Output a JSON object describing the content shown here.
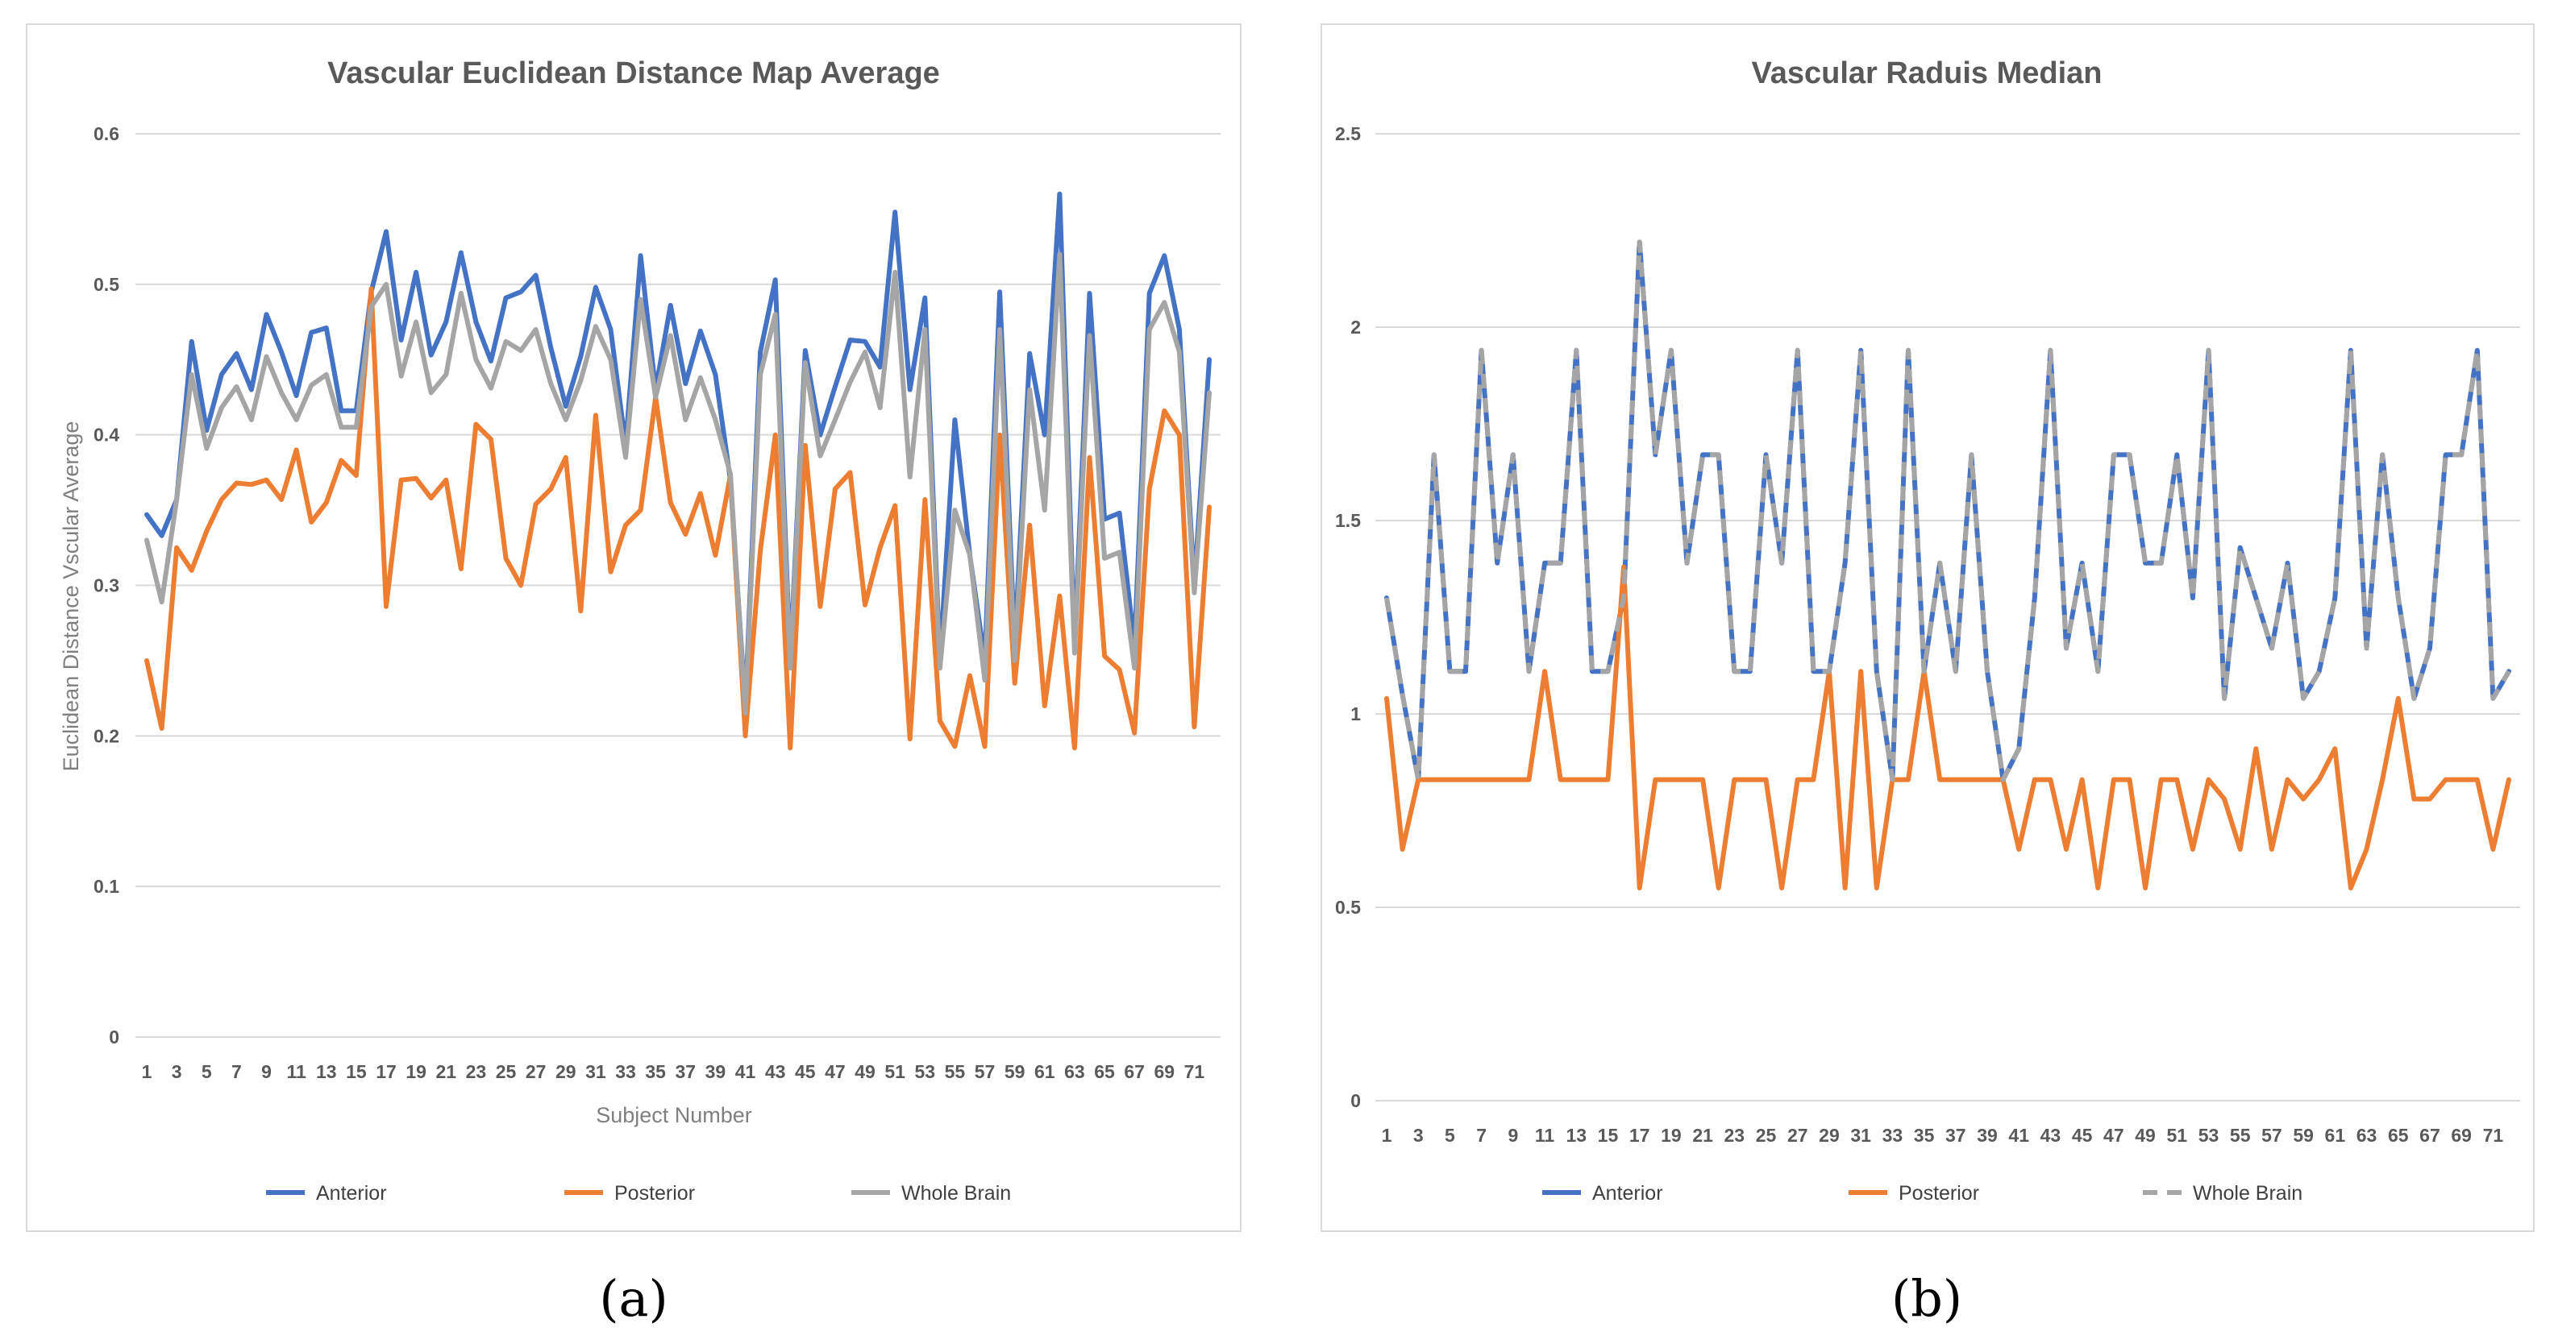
{
  "chart_data": [
    {
      "type": "line",
      "panel_label": "(a)",
      "title": "Vascular Euclidean Distance Map Average",
      "xlabel": "Subject Number",
      "ylabel": "Euclidean Distance  Vscular Average",
      "ylim": [
        0,
        0.6
      ],
      "yticks": [
        "0",
        "0.1",
        "0.2",
        "0.3",
        "0.4",
        "0.5",
        "0.6"
      ],
      "ytick_values": [
        0,
        0.1,
        0.2,
        0.3,
        0.4,
        0.5,
        0.6
      ],
      "xticks": [
        "1",
        "3",
        "5",
        "7",
        "9",
        "11",
        "13",
        "15",
        "17",
        "19",
        "21",
        "23",
        "25",
        "27",
        "29",
        "31",
        "33",
        "35",
        "37",
        "39",
        "41",
        "43",
        "45",
        "47",
        "49",
        "51",
        "53",
        "55",
        "57",
        "59",
        "61",
        "63",
        "65",
        "67",
        "69",
        "71"
      ],
      "x": [
        1,
        2,
        3,
        4,
        5,
        6,
        7,
        8,
        9,
        10,
        11,
        12,
        13,
        14,
        15,
        16,
        17,
        18,
        19,
        20,
        21,
        22,
        23,
        24,
        25,
        26,
        27,
        28,
        29,
        30,
        31,
        32,
        33,
        34,
        35,
        36,
        37,
        38,
        39,
        40,
        41,
        42,
        43,
        44,
        45,
        46,
        47,
        48,
        49,
        50,
        51,
        52,
        53,
        54,
        55,
        56,
        57,
        58,
        59,
        60,
        61,
        62,
        63,
        64,
        65,
        66,
        67,
        68,
        69,
        70,
        71,
        72
      ],
      "legend_position": "bottom",
      "series": [
        {
          "name": "Anterior",
          "color": "#4472c4",
          "dash": false,
          "values": [
            0.347,
            0.333,
            0.357,
            0.462,
            0.403,
            0.44,
            0.454,
            0.43,
            0.48,
            0.455,
            0.426,
            0.468,
            0.471,
            0.416,
            0.416,
            0.495,
            0.535,
            0.463,
            0.508,
            0.453,
            0.475,
            0.521,
            0.475,
            0.449,
            0.491,
            0.495,
            0.506,
            0.458,
            0.419,
            0.452,
            0.498,
            0.47,
            0.393,
            0.519,
            0.43,
            0.486,
            0.434,
            0.469,
            0.44,
            0.37,
            0.22,
            0.455,
            0.503,
            0.25,
            0.456,
            0.4,
            0.432,
            0.463,
            0.462,
            0.445,
            0.548,
            0.43,
            0.491,
            0.25,
            0.41,
            0.32,
            0.25,
            0.495,
            0.26,
            0.454,
            0.4,
            0.56,
            0.26,
            0.494,
            0.344,
            0.348,
            0.26,
            0.494,
            0.519,
            0.47,
            0.3,
            0.45
          ]
        },
        {
          "name": "Posterior",
          "color": "#ed7d31",
          "dash": false,
          "values": [
            0.25,
            0.205,
            0.325,
            0.31,
            0.336,
            0.357,
            0.368,
            0.367,
            0.37,
            0.357,
            0.39,
            0.342,
            0.355,
            0.383,
            0.373,
            0.497,
            0.286,
            0.37,
            0.371,
            0.358,
            0.37,
            0.311,
            0.407,
            0.397,
            0.318,
            0.3,
            0.354,
            0.364,
            0.385,
            0.283,
            0.413,
            0.309,
            0.34,
            0.35,
            0.425,
            0.355,
            0.334,
            0.361,
            0.32,
            0.373,
            0.2,
            0.323,
            0.4,
            0.192,
            0.393,
            0.286,
            0.364,
            0.375,
            0.287,
            0.325,
            0.353,
            0.198,
            0.357,
            0.21,
            0.193,
            0.24,
            0.193,
            0.4,
            0.235,
            0.34,
            0.22,
            0.293,
            0.192,
            0.385,
            0.253,
            0.244,
            0.202,
            0.364,
            0.416,
            0.4,
            0.206,
            0.352
          ]
        },
        {
          "name": "Whole Brain",
          "color": "#a5a5a5",
          "dash": false,
          "values": [
            0.33,
            0.289,
            0.357,
            0.44,
            0.391,
            0.418,
            0.432,
            0.41,
            0.452,
            0.428,
            0.41,
            0.433,
            0.44,
            0.405,
            0.405,
            0.485,
            0.5,
            0.439,
            0.475,
            0.428,
            0.44,
            0.494,
            0.45,
            0.431,
            0.462,
            0.456,
            0.47,
            0.434,
            0.41,
            0.436,
            0.472,
            0.45,
            0.385,
            0.49,
            0.425,
            0.466,
            0.41,
            0.438,
            0.41,
            0.374,
            0.215,
            0.44,
            0.48,
            0.245,
            0.448,
            0.386,
            0.41,
            0.435,
            0.455,
            0.418,
            0.508,
            0.372,
            0.47,
            0.245,
            0.35,
            0.32,
            0.237,
            0.47,
            0.25,
            0.43,
            0.35,
            0.52,
            0.255,
            0.466,
            0.318,
            0.322,
            0.245,
            0.47,
            0.488,
            0.455,
            0.295,
            0.428
          ]
        }
      ]
    },
    {
      "type": "line",
      "panel_label": "(b)",
      "title": "Vascular Raduis Median",
      "xlabel": "",
      "ylabel": "",
      "ylim": [
        0,
        2.5
      ],
      "yticks": [
        "0",
        "0.5",
        "1",
        "1.5",
        "2",
        "2.5"
      ],
      "ytick_values": [
        0,
        0.5,
        1,
        1.5,
        2,
        2.5
      ],
      "xticks": [
        "1",
        "3",
        "5",
        "7",
        "9",
        "11",
        "13",
        "15",
        "17",
        "19",
        "21",
        "23",
        "25",
        "27",
        "29",
        "31",
        "33",
        "35",
        "37",
        "39",
        "41",
        "43",
        "45",
        "47",
        "49",
        "51",
        "53",
        "55",
        "57",
        "59",
        "61",
        "63",
        "65",
        "67",
        "69",
        "71"
      ],
      "x": [
        1,
        2,
        3,
        4,
        5,
        6,
        7,
        8,
        9,
        10,
        11,
        12,
        13,
        14,
        15,
        16,
        17,
        18,
        19,
        20,
        21,
        22,
        23,
        24,
        25,
        26,
        27,
        28,
        29,
        30,
        31,
        32,
        33,
        34,
        35,
        36,
        37,
        38,
        39,
        40,
        41,
        42,
        43,
        44,
        45,
        46,
        47,
        48,
        49,
        50,
        51,
        52,
        53,
        54,
        55,
        56,
        57,
        58,
        59,
        60,
        61,
        62,
        63,
        64,
        65,
        66,
        67,
        68,
        69,
        70,
        71,
        72
      ],
      "legend_position": "bottom",
      "series": [
        {
          "name": "Anterior",
          "color": "#4472c4",
          "dash": false,
          "values": [
            1.3,
            1.05,
            0.83,
            1.67,
            1.11,
            1.11,
            1.94,
            1.39,
            1.67,
            1.11,
            1.39,
            1.39,
            1.94,
            1.11,
            1.11,
            1.3,
            2.22,
            1.67,
            1.94,
            1.39,
            1.67,
            1.67,
            1.11,
            1.11,
            1.67,
            1.39,
            1.94,
            1.11,
            1.11,
            1.39,
            1.94,
            1.11,
            0.83,
            1.94,
            1.11,
            1.39,
            1.11,
            1.67,
            1.11,
            0.83,
            0.91,
            1.3,
            1.94,
            1.17,
            1.39,
            1.11,
            1.67,
            1.67,
            1.39,
            1.39,
            1.67,
            1.3,
            1.94,
            1.04,
            1.43,
            1.3,
            1.17,
            1.39,
            1.04,
            1.11,
            1.3,
            1.94,
            1.17,
            1.67,
            1.3,
            1.04,
            1.17,
            1.67,
            1.67,
            1.94,
            1.04,
            1.11
          ]
        },
        {
          "name": "Posterior",
          "color": "#ed7d31",
          "dash": false,
          "values": [
            1.04,
            0.65,
            0.83,
            0.83,
            0.83,
            0.83,
            0.83,
            0.83,
            0.83,
            0.83,
            1.11,
            0.83,
            0.83,
            0.83,
            0.83,
            1.38,
            0.55,
            0.83,
            0.83,
            0.83,
            0.83,
            0.55,
            0.83,
            0.83,
            0.83,
            0.55,
            0.83,
            0.83,
            1.11,
            0.55,
            1.11,
            0.55,
            0.83,
            0.83,
            1.11,
            0.83,
            0.83,
            0.83,
            0.83,
            0.83,
            0.65,
            0.83,
            0.83,
            0.65,
            0.83,
            0.55,
            0.83,
            0.83,
            0.55,
            0.83,
            0.83,
            0.65,
            0.83,
            0.78,
            0.65,
            0.91,
            0.65,
            0.83,
            0.78,
            0.83,
            0.91,
            0.55,
            0.65,
            0.83,
            1.04,
            0.78,
            0.78,
            0.83,
            0.83,
            0.83,
            0.65,
            0.83
          ]
        },
        {
          "name": "Whole Brain",
          "color": "#a5a5a5",
          "dash": true,
          "values": [
            1.3,
            1.05,
            0.83,
            1.67,
            1.11,
            1.11,
            1.94,
            1.39,
            1.67,
            1.11,
            1.39,
            1.39,
            1.94,
            1.11,
            1.11,
            1.3,
            2.22,
            1.67,
            1.94,
            1.39,
            1.67,
            1.67,
            1.11,
            1.11,
            1.67,
            1.39,
            1.94,
            1.11,
            1.11,
            1.39,
            1.94,
            1.11,
            0.83,
            1.94,
            1.11,
            1.39,
            1.11,
            1.67,
            1.11,
            0.83,
            0.91,
            1.3,
            1.94,
            1.17,
            1.39,
            1.11,
            1.67,
            1.67,
            1.39,
            1.39,
            1.67,
            1.3,
            1.94,
            1.04,
            1.43,
            1.3,
            1.17,
            1.39,
            1.04,
            1.11,
            1.3,
            1.94,
            1.17,
            1.67,
            1.3,
            1.04,
            1.17,
            1.67,
            1.67,
            1.94,
            1.04,
            1.11
          ]
        }
      ]
    }
  ]
}
